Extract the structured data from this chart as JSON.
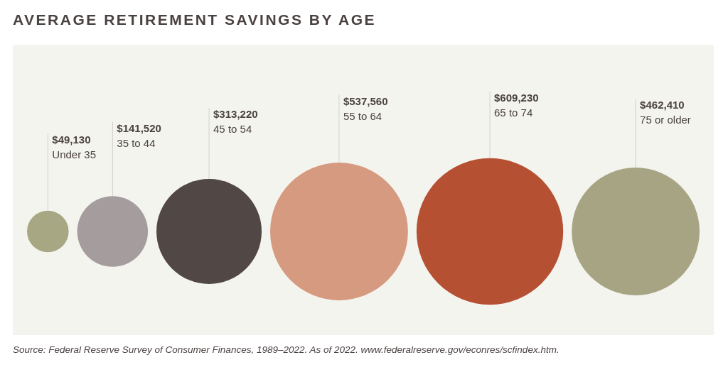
{
  "chart_data": {
    "type": "other",
    "title": "AVERAGE RETIREMENT SAVINGS BY AGE",
    "categories": [
      "Under 35",
      "35 to 44",
      "45 to 54",
      "55 to 64",
      "65 to 74",
      "75 or older"
    ],
    "values": [
      49130,
      141520,
      313220,
      537560,
      609230,
      462410
    ],
    "value_labels": [
      "$49,130",
      "$141,520",
      "$313,220",
      "$537,560",
      "$609,230",
      "$462,410"
    ],
    "colors": [
      "#a8a784",
      "#a59d9d",
      "#514745",
      "#d59a80",
      "#b65033",
      "#a7a484"
    ],
    "annotations": [
      "Source: Federal Reserve Survey of Consumer Finances, 1989–2022. As of 2022. www.federalreserve.gov/econres/scfindex.htm."
    ]
  }
}
